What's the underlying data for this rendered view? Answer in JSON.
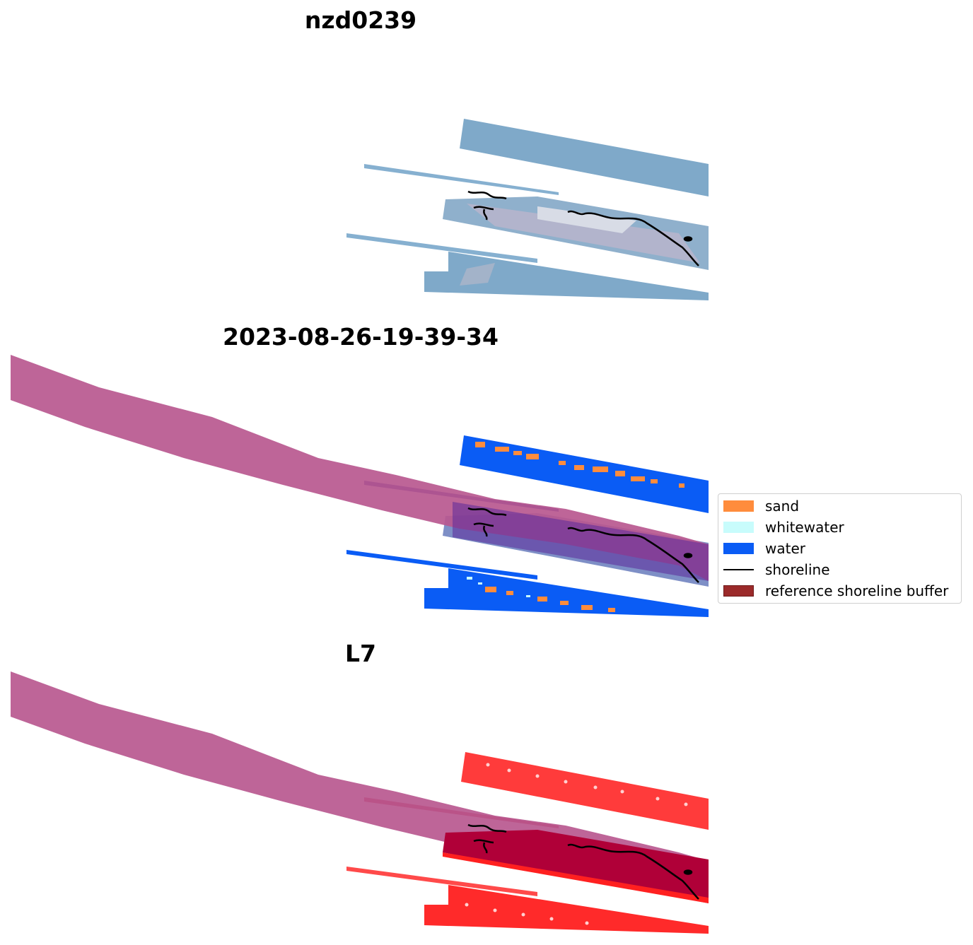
{
  "panels": [
    {
      "title": "nzd0239",
      "layer": "rgb-image"
    },
    {
      "title": "2023-08-26-19-39-34",
      "layer": "classification-overlay"
    },
    {
      "title": "L7",
      "layer": "mndwi-overlay"
    }
  ],
  "legend": {
    "items": [
      {
        "label": "sand",
        "kind": "patch",
        "color": "#ff8c3c"
      },
      {
        "label": "whitewater",
        "kind": "patch",
        "color": "#c8fcfc"
      },
      {
        "label": "water",
        "kind": "patch",
        "color": "#0a5cf5"
      },
      {
        "label": "shoreline",
        "kind": "line",
        "color": "#000000"
      },
      {
        "label": "reference shoreline buffer",
        "kind": "patch",
        "color": "#9b2a2a"
      }
    ]
  },
  "colors": {
    "rgb_strip": "#7fa9c9",
    "rgb_beach": "#a6a8c4",
    "water": "#0a5cf5",
    "sand": "#ff8c3c",
    "buffer_overlay": "#b9588f",
    "mndwi_red": "#ff3b3b",
    "mndwi_dark": "#b00038",
    "shoreline": "#000000"
  }
}
